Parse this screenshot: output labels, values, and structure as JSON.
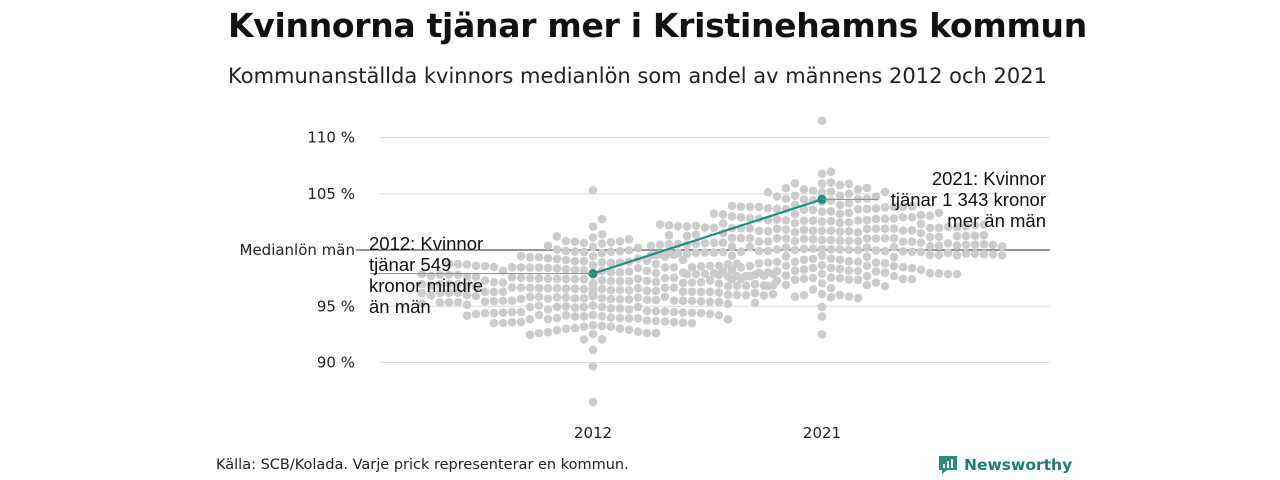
{
  "title": "Kvinnorna tjänar mer i Kristinehamns kommun",
  "subtitle": "Kommunanställda kvinnors medianlön som andel av männens 2012 och 2021",
  "source": "Källa: SCB/Kolada. Varje prick representerar en kommun.",
  "brand": {
    "name": "Newsworthy",
    "icon": "newsworthy-logo-icon",
    "color": "#2e8b7a"
  },
  "colors": {
    "dots": "#cccccc",
    "highlight": "#1f8f7f",
    "grid": "#dddddd",
    "baseline": "#555555"
  },
  "chart_data": {
    "type": "beeswarm",
    "title": "Kvinnorna tjänar mer i Kristinehamns kommun",
    "subtitle": "Kommunanställda kvinnors medianlön som andel av männens 2012 och 2021",
    "categories": [
      "2012",
      "2021"
    ],
    "yticks": [
      {
        "value": 90,
        "label": "90 %"
      },
      {
        "value": 95,
        "label": "95 %"
      },
      {
        "value": 100,
        "label": "Medianlön män"
      },
      {
        "value": 105,
        "label": "105 %"
      },
      {
        "value": 110,
        "label": "110 %"
      }
    ],
    "ylim": [
      84.5,
      112
    ],
    "reference_line": 100,
    "highlight": {
      "name": "Kristinehamn",
      "values": [
        97.9,
        104.5
      ],
      "annotations": [
        {
          "category": "2012",
          "lines": [
            "2012: Kvinnor",
            "tjänar 549",
            "kronor mindre",
            "än män"
          ]
        },
        {
          "category": "2021",
          "lines": [
            "2021: Kvinnor",
            "tjänar 1 343 kronor",
            "mer än män"
          ]
        }
      ]
    },
    "distributions": [
      {
        "category": "2012",
        "count": 290,
        "median": 96.5,
        "sd": 2.1,
        "min": 86.5,
        "max": 105.3
      },
      {
        "category": "2021",
        "count": 290,
        "median": 100.9,
        "sd": 2.5,
        "min": 92.5,
        "max": 111.5
      }
    ],
    "grid": true
  }
}
